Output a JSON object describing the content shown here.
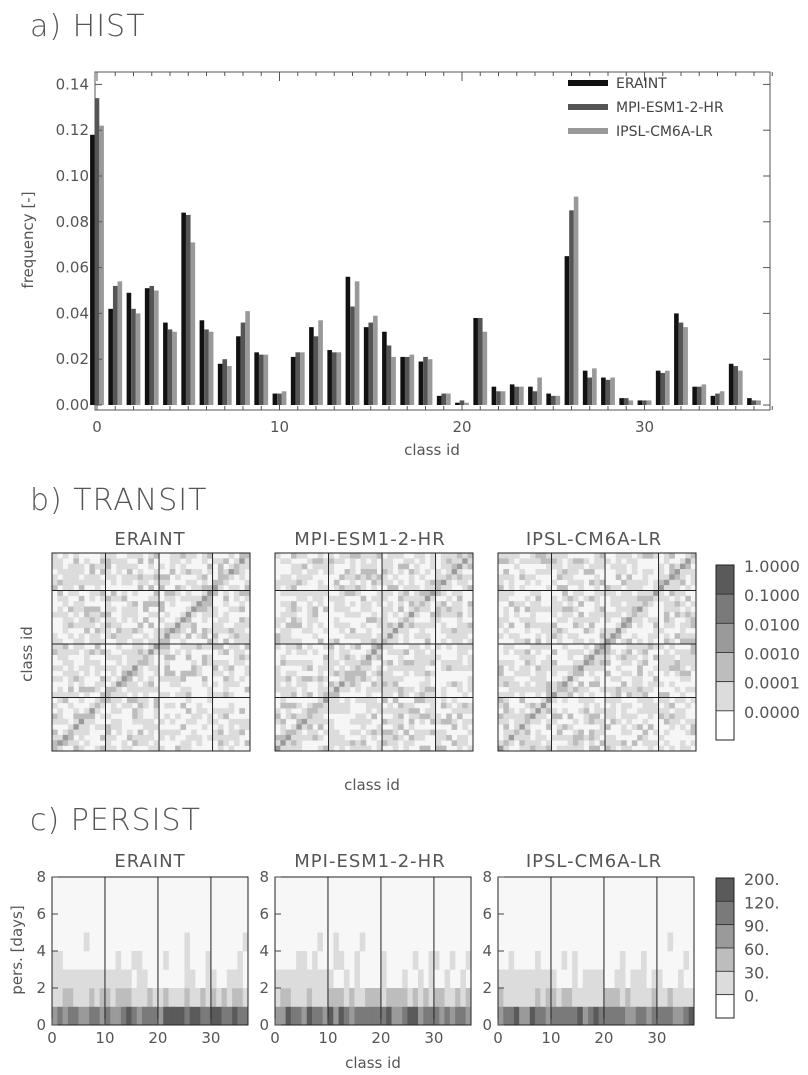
{
  "chart_data": [
    {
      "panel": "a)",
      "title": "HIST",
      "type": "bar",
      "xlabel": "class id",
      "ylabel": "frequency [-]",
      "xlim": [
        0,
        37
      ],
      "ylim": [
        0,
        0.15
      ],
      "xticks": [
        0,
        10,
        20,
        30
      ],
      "xtick_labels": [
        "0",
        "10",
        "20",
        "30"
      ],
      "yticks": [
        0.0,
        0.02,
        0.04,
        0.06,
        0.08,
        0.1,
        0.12,
        0.14
      ],
      "ytick_labels": [
        "0.00",
        "0.02",
        "0.04",
        "0.06",
        "0.08",
        "0.10",
        "0.12",
        "0.14"
      ],
      "legend_position": "top-right",
      "colors": [
        "#111111",
        "#555555",
        "#999999"
      ],
      "series": [
        {
          "name": "ERAINT",
          "values": [
            0.118,
            0.042,
            0.049,
            0.051,
            0.036,
            0.084,
            0.037,
            0.018,
            0.03,
            0.023,
            0.005,
            0.021,
            0.034,
            0.024,
            0.056,
            0.034,
            0.032,
            0.021,
            0.019,
            0.004,
            0.001,
            0.038,
            0.008,
            0.009,
            0.008,
            0.005,
            0.065,
            0.015,
            0.012,
            0.003,
            0.002,
            0.015,
            0.04,
            0.008,
            0.004,
            0.018,
            0.003
          ]
        },
        {
          "name": "MPI-ESM1-2-HR",
          "values": [
            0.134,
            0.052,
            0.042,
            0.052,
            0.033,
            0.083,
            0.033,
            0.02,
            0.036,
            0.022,
            0.005,
            0.023,
            0.03,
            0.023,
            0.043,
            0.036,
            0.026,
            0.021,
            0.021,
            0.005,
            0.002,
            0.038,
            0.006,
            0.008,
            0.006,
            0.004,
            0.085,
            0.012,
            0.011,
            0.003,
            0.002,
            0.014,
            0.036,
            0.008,
            0.005,
            0.017,
            0.002
          ]
        },
        {
          "name": "IPSL-CM6A-LR",
          "values": [
            0.122,
            0.054,
            0.04,
            0.05,
            0.032,
            0.071,
            0.032,
            0.017,
            0.041,
            0.022,
            0.006,
            0.023,
            0.037,
            0.023,
            0.054,
            0.039,
            0.021,
            0.022,
            0.02,
            0.005,
            0.001,
            0.032,
            0.006,
            0.008,
            0.012,
            0.004,
            0.091,
            0.016,
            0.012,
            0.002,
            0.002,
            0.015,
            0.034,
            0.009,
            0.006,
            0.015,
            0.002
          ]
        }
      ]
    },
    {
      "panel": "b)",
      "title": "TRANSIT",
      "type": "heatmap",
      "xlabel": "class id",
      "ylabel": "class id",
      "matrix_size": 37,
      "subplots": [
        "ERAINT",
        "MPI-ESM1-2-HR",
        "IPSL-CM6A-LR"
      ],
      "colorbar_labels": [
        "1.0000",
        "0.1000",
        "0.0100",
        "0.0010",
        "0.0001",
        "0.0000"
      ],
      "colorbar_colors": [
        "#5a5a5a",
        "#7a7a7a",
        "#9a9a9a",
        "#bdbdbd",
        "#dcdcdc",
        "#ffffff"
      ],
      "grid_every": 10
    },
    {
      "panel": "c)",
      "title": "PERSIST",
      "type": "heatmap",
      "xlabel": "class id",
      "ylabel": "pers. [days]",
      "xlim": [
        0,
        37
      ],
      "ylim": [
        0,
        8
      ],
      "xticks": [
        0,
        10,
        20,
        30
      ],
      "xtick_labels": [
        "0",
        "10",
        "20",
        "30"
      ],
      "yticks": [
        0,
        2,
        4,
        6,
        8
      ],
      "ytick_labels": [
        "0",
        "2",
        "4",
        "6",
        "8"
      ],
      "subplots": [
        "ERAINT",
        "MPI-ESM1-2-HR",
        "IPSL-CM6A-LR"
      ],
      "colorbar_labels": [
        "200.",
        "120.",
        "90.",
        "60.",
        "30.",
        "0."
      ],
      "colorbar_colors": [
        "#5a5a5a",
        "#7a7a7a",
        "#9a9a9a",
        "#bdbdbd",
        "#dcdcdc",
        "#ffffff"
      ],
      "grid_every": 10
    }
  ]
}
